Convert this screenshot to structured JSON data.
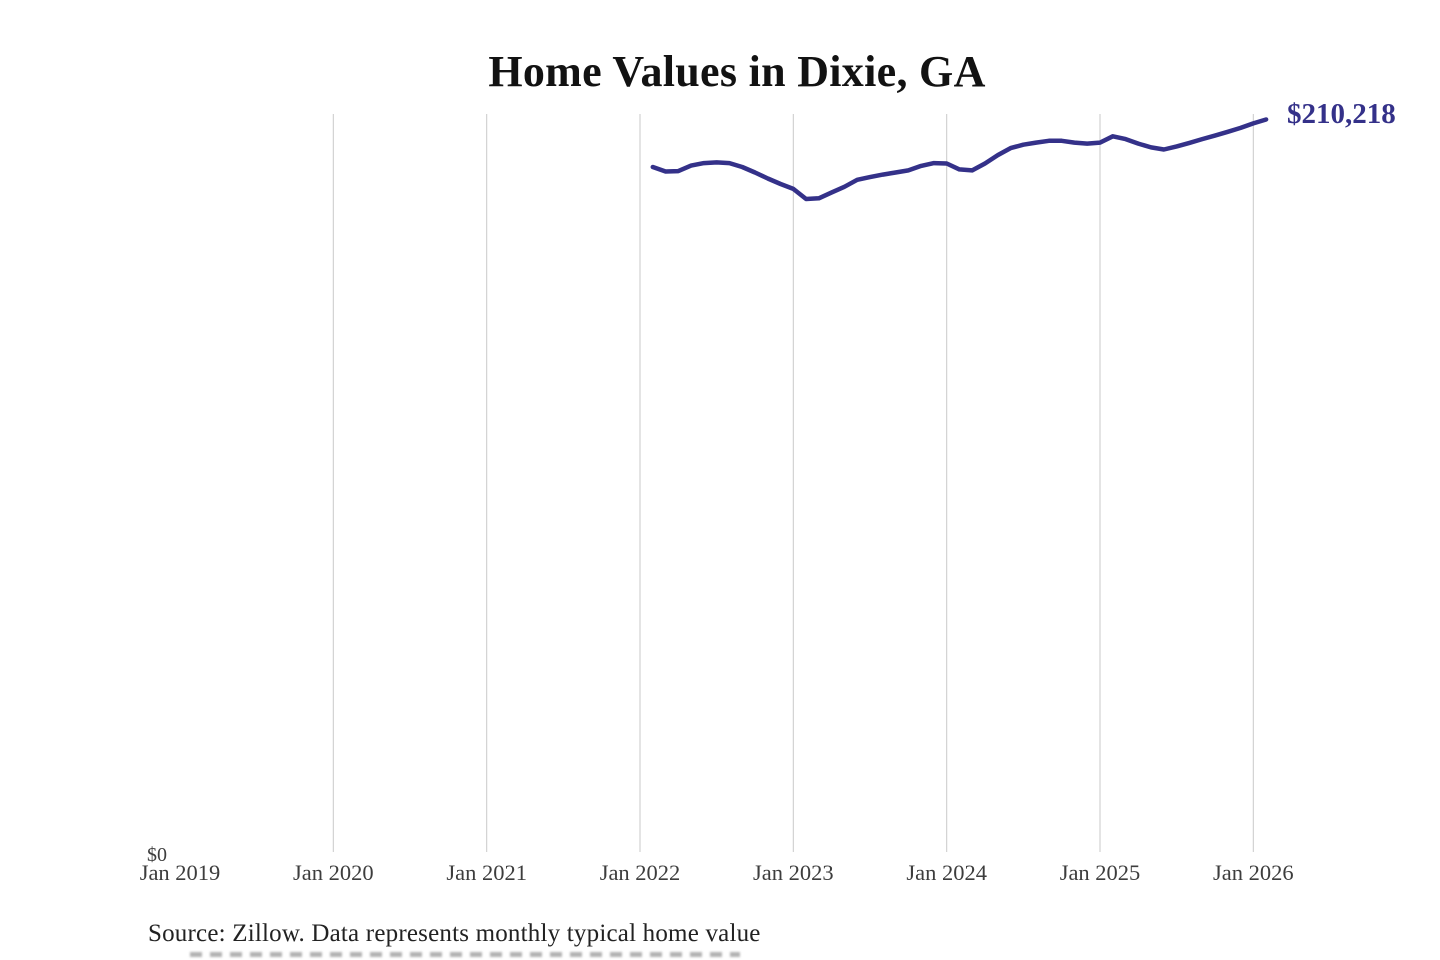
{
  "title": "Home Values in Dixie, GA",
  "source_note": "Source: Zillow. Data represents monthly typical home value",
  "labels": {
    "y_zero": "$0",
    "end_value": "$210,218"
  },
  "colors": {
    "background": "#ffffff",
    "line": "#343189",
    "end_label": "#343189",
    "grid": "#c9c9c9",
    "title_text": "#121212",
    "axis_text": "#3d3d3d",
    "source_text": "#222222"
  },
  "chart_data": {
    "type": "line",
    "title": "Home Values in Dixie, GA",
    "xlabel": "",
    "ylabel": "",
    "ylim": [
      0,
      211000
    ],
    "grid": "vertical-only",
    "legend": "none",
    "end_label": "$210,218",
    "x_axis_ticks": [
      {
        "label": "Jan 2019",
        "year": 2019
      },
      {
        "label": "Jan 2020",
        "year": 2020
      },
      {
        "label": "Jan 2021",
        "year": 2021
      },
      {
        "label": "Jan 2022",
        "year": 2022
      },
      {
        "label": "Jan 2023",
        "year": 2023
      },
      {
        "label": "Jan 2024",
        "year": 2024
      },
      {
        "label": "Jan 2025",
        "year": 2025
      },
      {
        "label": "Jan 2026",
        "year": 2026
      }
    ],
    "gridline_years": [
      2020,
      2021,
      2022,
      2023,
      2024,
      2025,
      2026
    ],
    "x": [
      "2022-02",
      "2022-03",
      "2022-04",
      "2022-05",
      "2022-06",
      "2022-07",
      "2022-08",
      "2022-09",
      "2022-10",
      "2022-11",
      "2022-12",
      "2023-01",
      "2023-02",
      "2023-03",
      "2023-04",
      "2023-05",
      "2023-06",
      "2023-07",
      "2023-08",
      "2023-09",
      "2023-10",
      "2023-11",
      "2023-12",
      "2024-01",
      "2024-02",
      "2024-03",
      "2024-04",
      "2024-05",
      "2024-06",
      "2024-07",
      "2024-08",
      "2024-09",
      "2024-10",
      "2024-11",
      "2024-12",
      "2025-01",
      "2025-02",
      "2025-03",
      "2025-04",
      "2025-05",
      "2025-06",
      "2025-07",
      "2025-08",
      "2025-09",
      "2025-10",
      "2025-11",
      "2025-12",
      "2026-01",
      "2026-02"
    ],
    "values": [
      196600,
      195300,
      195400,
      197000,
      197700,
      197900,
      197700,
      196600,
      195000,
      193300,
      191700,
      190300,
      187400,
      187600,
      189300,
      190900,
      192900,
      193700,
      194400,
      195000,
      195600,
      196900,
      197700,
      197600,
      195900,
      195600,
      197600,
      200000,
      202000,
      203000,
      203600,
      204100,
      204100,
      203600,
      203300,
      203600,
      205400,
      204600,
      203300,
      202200,
      201600,
      202500,
      203500,
      204600,
      205600,
      206700,
      207800,
      209100,
      210218
    ]
  }
}
